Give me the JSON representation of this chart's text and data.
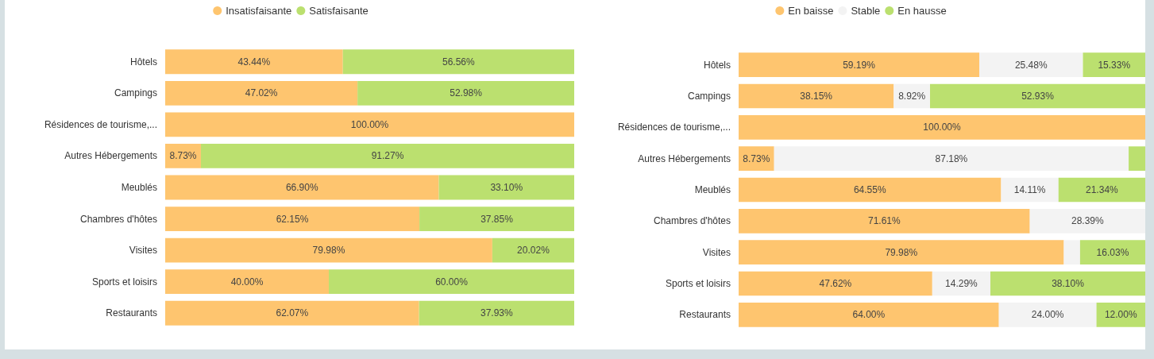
{
  "chart_data": [
    {
      "type": "bar",
      "orientation": "horizontal",
      "stacked": true,
      "legend": "top",
      "tick_labels": "y",
      "xlim": [
        0,
        100
      ],
      "categories": [
        "Hôtels",
        "Campings",
        "Résidences de tourisme,...",
        "Autres Hébergements",
        "Meublés",
        "Chambres d'hôtes",
        "Visites",
        "Sports et loisirs",
        "Restaurants"
      ],
      "series": [
        {
          "name": "Insatisfaisante",
          "color": "#fec56f",
          "values": [
            43.44,
            47.02,
            100.0,
            8.73,
            66.9,
            62.15,
            79.98,
            40.0,
            62.07
          ],
          "value_labels": [
            "43.44%",
            "47.02%",
            "100.00%",
            "8.73%",
            "66.90%",
            "62.15%",
            "79.98%",
            "40.00%",
            "62.07%"
          ]
        },
        {
          "name": "Satisfaisante",
          "color": "#bbe06f",
          "values": [
            56.56,
            52.98,
            null,
            91.27,
            33.1,
            37.85,
            20.02,
            60.0,
            37.93
          ],
          "value_labels": [
            "56.56%",
            "52.98%",
            null,
            "91.27%",
            "33.10%",
            "37.85%",
            "20.02%",
            "60.00%",
            "37.93%"
          ]
        }
      ]
    },
    {
      "type": "bar",
      "orientation": "horizontal",
      "stacked": true,
      "legend": "top",
      "tick_labels": "y",
      "xlim": [
        0,
        100
      ],
      "categories": [
        "Hôtels",
        "Campings",
        "Résidences de tourisme,...",
        "Autres Hébergements",
        "Meublés",
        "Chambres d'hôtes",
        "Visites",
        "Sports et loisirs",
        "Restaurants"
      ],
      "series": [
        {
          "name": "En baisse",
          "color": "#fec56f",
          "values": [
            59.19,
            38.15,
            100.0,
            8.73,
            64.55,
            71.61,
            79.98,
            47.62,
            64.0
          ],
          "value_labels": [
            "59.19%",
            "38.15%",
            "100.00%",
            "8.73%",
            "64.55%",
            "71.61%",
            "79.98%",
            "47.62%",
            "64.00%"
          ]
        },
        {
          "name": "Stable",
          "color": "#f3f3f3",
          "values": [
            25.48,
            8.92,
            null,
            87.18,
            14.11,
            28.39,
            3.99,
            14.29,
            24.0
          ],
          "value_labels": [
            "25.48%",
            "8.92%",
            null,
            "87.18%",
            "14.11%",
            "28.39%",
            null,
            "14.29%",
            "24.00%"
          ]
        },
        {
          "name": "En hausse",
          "color": "#bbe06f",
          "values": [
            15.33,
            52.93,
            null,
            4.09,
            21.34,
            null,
            16.03,
            38.1,
            12.0
          ],
          "value_labels": [
            "15.33%",
            "52.93%",
            null,
            null,
            "21.34%",
            null,
            "16.03%",
            "38.10%",
            "12.00%"
          ]
        }
      ]
    }
  ]
}
